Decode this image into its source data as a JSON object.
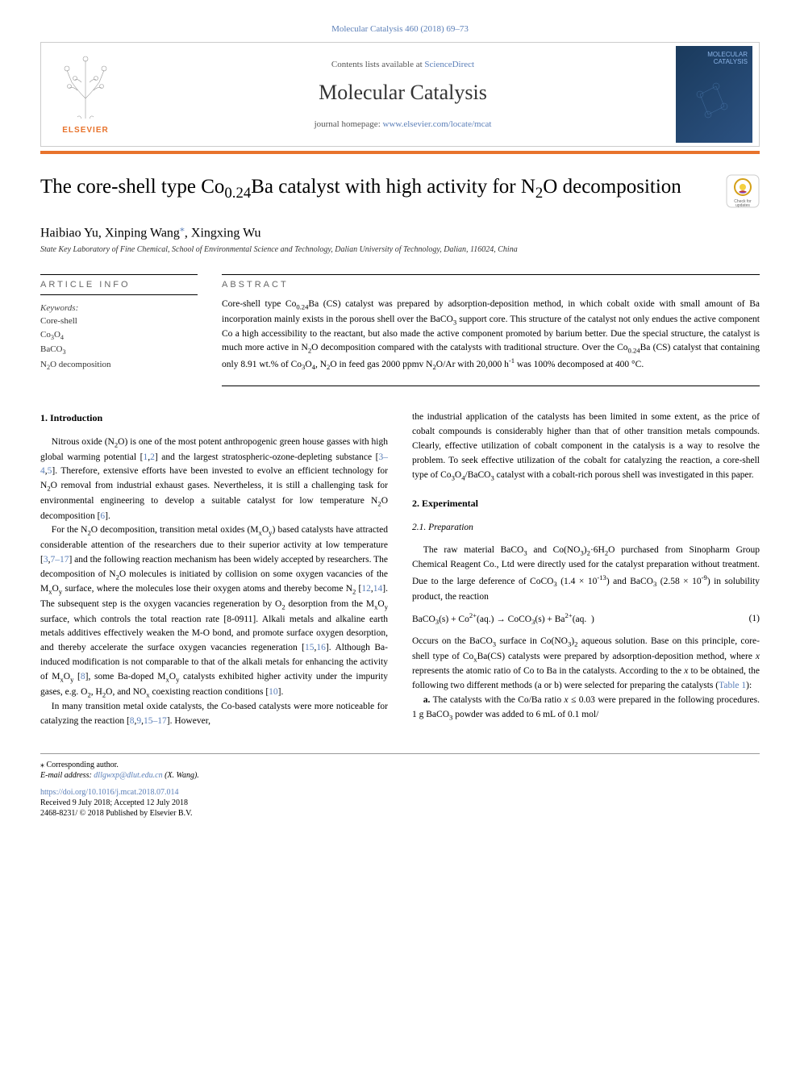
{
  "header": {
    "journal_ref": "Molecular Catalysis 460 (2018) 69–73",
    "contents_text": "Contents lists available at ",
    "contents_link": "ScienceDirect",
    "journal_name": "Molecular Catalysis",
    "homepage_text": "journal homepage: ",
    "homepage_link": "www.elsevier.com/locate/mcat",
    "publisher": "ELSEVIER",
    "cover_text": "MOLECULAR CATALYSIS"
  },
  "article": {
    "title_html": "The core-shell type Co<sub>0.24</sub>Ba catalyst with high activity for N<sub>2</sub>O decomposition",
    "authors_html": "Haibiao Yu, Xinping Wang<span class=\"corresp-mark\">⁎</span>, Xingxing Wu",
    "affiliation": "State Key Laboratory of Fine Chemical, School of Environmental Science and Technology, Dalian University of Technology, Dalian, 116024, China"
  },
  "article_info": {
    "heading": "ARTICLE INFO",
    "keywords_label": "Keywords:",
    "keywords": [
      "Core-shell",
      "Co<sub>3</sub>O<sub>4</sub>",
      "BaCO<sub>3</sub>",
      "N<sub>2</sub>O decomposition"
    ]
  },
  "abstract": {
    "heading": "ABSTRACT",
    "text_html": "Core-shell type Co<sub>0.24</sub>Ba (CS) catalyst was prepared by adsorption-deposition method, in which cobalt oxide with small amount of Ba incorporation mainly exists in the porous shell over the BaCO<sub>3</sub> support core. This structure of the catalyst not only endues the active component Co a high accessibility to the reactant, but also made the active component promoted by barium better. Due the special structure, the catalyst is much more active in N<sub>2</sub>O decomposition compared with the catalysts with traditional structure. Over the Co<sub>0.24</sub>Ba (CS) catalyst that containing only 8.91 wt.% of Co<sub>3</sub>O<sub>4</sub>, N<sub>2</sub>O in feed gas 2000 ppmv N<sub>2</sub>O/Ar with 20,000 h<sup>-1</sup> was 100% decomposed at 400 °C."
  },
  "body": {
    "intro_heading": "1. Introduction",
    "intro_p1_html": "Nitrous oxide (N<sub>2</sub>O) is one of the most potent anthropogenic green house gasses with high global warming potential [<span class=\"ref-link\">1</span>,<span class=\"ref-link\">2</span>] and the largest stratospheric-ozone-depleting substance [<span class=\"ref-link\">3–4</span>,<span class=\"ref-link\">5</span>]. Therefore, extensive efforts have been invested to evolve an efficient technology for N<sub>2</sub>O removal from industrial exhaust gases. Nevertheless, it is still a challenging task for environmental engineering to develop a suitable catalyst for low temperature N<sub>2</sub>O decomposition [<span class=\"ref-link\">6</span>].",
    "intro_p2_html": "For the N<sub>2</sub>O decomposition, transition metal oxides (M<sub>x</sub>O<sub>y</sub>) based catalysts have attracted considerable attention of the researchers due to their superior activity at low temperature [<span class=\"ref-link\">3</span>,<span class=\"ref-link\">7–17</span>] and the following reaction mechanism has been widely accepted by researchers. The decomposition of N<sub>2</sub>O molecules is initiated by collision on some oxygen vacancies of the M<sub>x</sub>O<sub>y</sub> surface, where the molecules lose their oxygen atoms and thereby become N<sub>2</sub> [<span class=\"ref-link\">12</span>,<span class=\"ref-link\">14</span>]. The subsequent step is the oxygen vacancies regeneration by O<sub>2</sub> desorption from the M<sub>x</sub>O<sub>y</sub> surface, which controls the total reaction rate [8-0911]. Alkali metals and alkaline earth metals additives effectively weaken the M-O bond, and promote surface oxygen desorption, and thereby accelerate the surface oxygen vacancies regeneration [<span class=\"ref-link\">15</span>,<span class=\"ref-link\">16</span>]. Although Ba-induced modification is not comparable to that of the alkali metals for enhancing the activity of M<sub>x</sub>O<sub>y</sub> [<span class=\"ref-link\">8</span>], some Ba-doped M<sub>x</sub>O<sub>y</sub> catalysts exhibited higher activity under the impurity gases, e.g. O<sub>2</sub>, H<sub>2</sub>O, and NO<sub>x</sub> coexisting reaction conditions [<span class=\"ref-link\">10</span>].",
    "intro_p3_html": "In many transition metal oxide catalysts, the Co-based catalysts were more noticeable for catalyzing the reaction [<span class=\"ref-link\">8</span>,<span class=\"ref-link\">9</span>,<span class=\"ref-link\">15–17</span>]. However,",
    "col2_p1_html": "the industrial application of the catalysts has been limited in some extent, as the price of cobalt compounds is considerably higher than that of other transition metals compounds. Clearly, effective utilization of cobalt component in the catalysis is a way to resolve the problem. To seek effective utilization of the cobalt for catalyzing the reaction, a core-shell type of Co<sub>3</sub>O<sub>4</sub>/BaCO<sub>3</sub> catalyst with a cobalt-rich porous shell was investigated in this paper.",
    "exp_heading": "2. Experimental",
    "prep_heading": "2.1. Preparation",
    "prep_p1_html": "The raw material BaCO<sub>3</sub> and Co(NO<sub>3</sub>)<sub>2</sub>·6H<sub>2</sub>O purchased from Sinopharm Group Chemical Reagent Co., Ltd were directly used for the catalyst preparation without treatment. Due to the large deference of CoCO<sub>3</sub> (1.4 × 10<sup>-13</sup>) and BaCO<sub>3</sub> (2.58 × 10<sup>-9</sup>) in solubility product, the reaction",
    "equation_html": "BaCO<sub>3</sub>(s) + Co<sup>2+</sup>(aq.) → CoCO<sub>3</sub>(s) + Ba<sup>2+</sup>(aq.&nbsp;&nbsp;)",
    "equation_num": "(1)",
    "prep_p2_html": "Occurs on the BaCO<sub>3</sub> surface in Co(NO<sub>3</sub>)<sub>2</sub> aqueous solution. Base on this principle, core-shell type of Co<sub>x</sub>Ba(CS) catalysts were prepared by adsorption-deposition method, where <i>x</i> represents the atomic ratio of Co to Ba in the catalysts. According to the <i>x</i> to be obtained, the following two different methods (a or b) were selected for preparing the catalysts (<span class=\"ref-link\">Table 1</span>):",
    "prep_p3_html": "<b>a.</b> The catalysts with the Co/Ba ratio <i>x</i> ≤ 0.03 were prepared in the following procedures. 1 g BaCO<sub>3</sub> powder was added to 6 mL of 0.1 mol/"
  },
  "footer": {
    "corresp": "⁎ Corresponding author.",
    "email_label": "E-mail address: ",
    "email": "dllgwxp@dlut.edu.cn",
    "email_name": " (X. Wang).",
    "doi": "https://doi.org/10.1016/j.mcat.2018.07.014",
    "received": "Received 9 July 2018; Accepted 12 July 2018",
    "issn": "2468-8231/ © 2018 Published by Elsevier B.V."
  },
  "colors": {
    "link": "#5b7fb8",
    "orange": "#e8732c",
    "cover_bg": "#1a3a5c"
  }
}
